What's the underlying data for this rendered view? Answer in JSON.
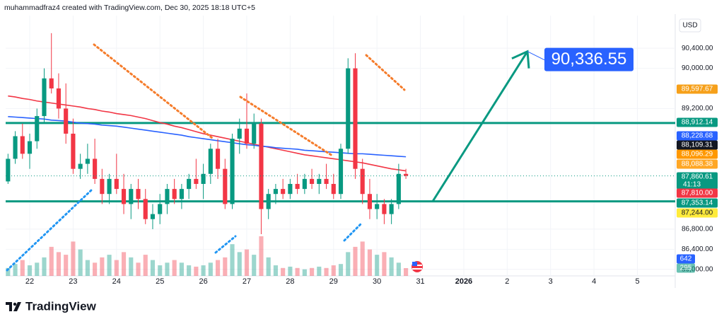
{
  "header": "muhammadfraz4 created with TradingView.com, Dec 30, 2025 18:18 UTC+5",
  "footer": "TradingView",
  "chart_data": {
    "type": "candlestick",
    "currency": "USD",
    "x": [
      -12,
      -8,
      -4,
      0,
      4,
      8,
      12,
      16,
      20,
      24,
      28,
      32,
      36,
      40,
      44,
      48,
      52,
      56,
      60,
      64,
      68,
      72,
      76,
      80,
      84,
      88,
      92,
      96,
      100,
      104,
      108,
      112,
      116,
      120,
      124,
      128,
      132,
      136,
      140,
      144,
      148,
      152,
      156,
      160,
      164,
      168,
      172,
      176,
      180,
      184,
      188,
      192,
      196,
      200,
      204,
      208
    ],
    "open": [
      87750,
      88200,
      88650,
      88300,
      88550,
      89050,
      89800,
      89600,
      89200,
      88700,
      88000,
      88100,
      88200,
      87800,
      87500,
      87800,
      87600,
      87300,
      87600,
      87400,
      87000,
      87100,
      87300,
      87600,
      87400,
      87600,
      87800,
      87700,
      87900,
      88400,
      88000,
      87300,
      88600,
      88800,
      88500,
      88900,
      87200,
      87500,
      87600,
      87500,
      87700,
      87600,
      87800,
      87700,
      87800,
      87700,
      87500,
      88400,
      90000,
      88000,
      87500,
      87200,
      87300,
      87100,
      87300,
      87900
    ],
    "high": [
      88300,
      88750,
      88900,
      88700,
      89200,
      90000,
      90700,
      89900,
      89700,
      89000,
      88300,
      88500,
      88600,
      88000,
      87900,
      88300,
      87900,
      87700,
      87800,
      87600,
      87300,
      87500,
      87700,
      87800,
      87700,
      87900,
      88200,
      88100,
      88500,
      88600,
      88200,
      88700,
      89000,
      89500,
      89100,
      89000,
      87600,
      87700,
      87800,
      87800,
      87900,
      87900,
      88000,
      87900,
      88100,
      87900,
      88500,
      90200,
      90300,
      88200,
      87800,
      87500,
      87400,
      87400,
      88100,
      88000
    ],
    "low": [
      87700,
      88100,
      88200,
      88000,
      88400,
      88900,
      89500,
      89000,
      88500,
      87900,
      87800,
      87900,
      87700,
      87300,
      87300,
      87500,
      87100,
      87000,
      87200,
      86900,
      86800,
      86900,
      87100,
      87300,
      87200,
      87400,
      87600,
      87400,
      87700,
      87800,
      87200,
      87200,
      88300,
      88400,
      88400,
      86700,
      87000,
      87300,
      87400,
      87400,
      87500,
      87500,
      87600,
      87500,
      87600,
      87400,
      87400,
      88300,
      87800,
      87300,
      87000,
      87000,
      86900,
      86900,
      87200,
      87800
    ],
    "close": [
      88200,
      88650,
      88300,
      88550,
      89050,
      89800,
      89600,
      89200,
      88700,
      88000,
      88100,
      88200,
      87800,
      87500,
      87800,
      87600,
      87300,
      87600,
      87400,
      87000,
      87100,
      87300,
      87600,
      87400,
      87600,
      87800,
      87700,
      87900,
      88400,
      88000,
      87300,
      88600,
      88800,
      88500,
      88900,
      87200,
      87500,
      87600,
      87500,
      87700,
      87600,
      87800,
      87700,
      87800,
      87700,
      87500,
      88400,
      90000,
      88000,
      87500,
      87200,
      87300,
      87100,
      87300,
      87900,
      87860
    ],
    "up_color": "#089981",
    "down_color": "#f23645",
    "volume": [
      300,
      450,
      600,
      400,
      500,
      700,
      1100,
      900,
      800,
      1300,
      1000,
      600,
      500,
      700,
      800,
      600,
      900,
      700,
      500,
      800,
      600,
      400,
      500,
      600,
      500,
      400,
      350,
      400,
      500,
      600,
      700,
      1200,
      900,
      1000,
      800,
      1500,
      700,
      400,
      300,
      350,
      300,
      250,
      300,
      350,
      300,
      400,
      450,
      900,
      1100,
      1300,
      1000,
      800,
      900,
      700,
      500,
      295
    ],
    "volume_ylim": [
      0,
      9850
    ],
    "volume_ma_tag": {
      "value": 642,
      "color": "#2962ff"
    },
    "moving_averages": [
      {
        "color": "#f23645",
        "values": [
          89450,
          89430,
          89400,
          89380,
          89350,
          89330,
          89310,
          89290,
          89270,
          89250,
          89230,
          89200,
          89180,
          89150,
          89130,
          89100,
          89080,
          89060,
          89030,
          89000,
          88960,
          88920,
          88890,
          88850,
          88820,
          88780,
          88740,
          88700,
          88670,
          88640,
          88610,
          88580,
          88550,
          88520,
          88490,
          88460,
          88430,
          88400,
          88370,
          88340,
          88310,
          88280,
          88260,
          88240,
          88220,
          88200,
          88180,
          88160,
          88140,
          88120,
          88090,
          88060,
          88030,
          88000,
          87980,
          87960
        ]
      },
      {
        "color": "#2962ff",
        "values": [
          89040,
          89030,
          89020,
          89010,
          89000,
          88990,
          88970,
          88960,
          88950,
          88930,
          88910,
          88900,
          88890,
          88870,
          88860,
          88850,
          88830,
          88810,
          88790,
          88770,
          88750,
          88730,
          88710,
          88690,
          88670,
          88640,
          88620,
          88600,
          88580,
          88560,
          88540,
          88520,
          88500,
          88480,
          88470,
          88450,
          88440,
          88420,
          88410,
          88400,
          88390,
          88370,
          88360,
          88350,
          88340,
          88330,
          88320,
          88310,
          88300,
          88300,
          88290,
          88280,
          88270,
          88260,
          88250,
          88240
        ]
      }
    ],
    "xlim": [
      -13.3,
      356.9
    ],
    "xticks": [
      {
        "value": 0,
        "label": "22"
      },
      {
        "value": 24,
        "label": "23"
      },
      {
        "value": 48,
        "label": "24"
      },
      {
        "value": 72,
        "label": "25"
      },
      {
        "value": 96,
        "label": "26"
      },
      {
        "value": 120,
        "label": "27"
      },
      {
        "value": 144,
        "label": "28"
      },
      {
        "value": 168,
        "label": "29"
      },
      {
        "value": 192,
        "label": "30"
      },
      {
        "value": 216,
        "label": "31"
      },
      {
        "value": 240,
        "label": "2026"
      },
      {
        "value": 264,
        "label": "2"
      },
      {
        "value": 288,
        "label": "3"
      },
      {
        "value": 312,
        "label": "4"
      },
      {
        "value": 336,
        "label": "5"
      }
    ],
    "ylim": [
      85870,
      91050
    ],
    "yticks": [
      {
        "value": 90400,
        "label": "90,400.00"
      },
      {
        "value": 90000,
        "label": "90,000.00"
      },
      {
        "value": 89200,
        "label": "89,200.00"
      },
      {
        "value": 86800,
        "label": "86,800.00"
      },
      {
        "value": 86400,
        "label": "86,400.00"
      },
      {
        "value": 86000,
        "label": "86,000.00"
      }
    ],
    "grid": true,
    "levels": [
      {
        "value": 88912.14,
        "color": "#089981"
      },
      {
        "value": 87353.14,
        "color": "#089981"
      }
    ],
    "price_tags": [
      {
        "value": 89597.67,
        "label": "89,597.67",
        "color": "#f6a01a",
        "text_color": "#ffffff"
      },
      {
        "value": 88912.14,
        "label": "88,912.14",
        "color": "#089981",
        "text_color": "#ffffff"
      },
      {
        "value": 88228.68,
        "label": "88,228.68",
        "color": "#2962ff",
        "text_color": "#ffffff"
      },
      {
        "value": 88109.31,
        "label": "88,109.31",
        "color": "#131722",
        "text_color": "#ffffff"
      },
      {
        "value": 88096.29,
        "label": "88,096.29",
        "color": "#ff9800",
        "text_color": "#ffffff"
      },
      {
        "value": 88088.38,
        "label": "88,088.38",
        "color": "#ffa726",
        "text_color": "#ffffff"
      },
      {
        "value": 87860.61,
        "label": "87,860.61",
        "color": "#089981",
        "text_color": "#ffffff",
        "countdown": "41:13"
      },
      {
        "value": 87810.0,
        "label": "87,810.00",
        "color": "#f23645",
        "text_color": "#ffffff"
      },
      {
        "value": 87353.14,
        "label": "87,353.14",
        "color": "#089981",
        "text_color": "#ffffff"
      },
      {
        "value": 87244.0,
        "label": "87,244.00",
        "color": "#ffeb3b",
        "text_color": "#131722"
      }
    ],
    "target": {
      "value": 90336.55,
      "label": "90,336.55",
      "color": "#2962ff",
      "arrow_color": "#089981"
    }
  }
}
